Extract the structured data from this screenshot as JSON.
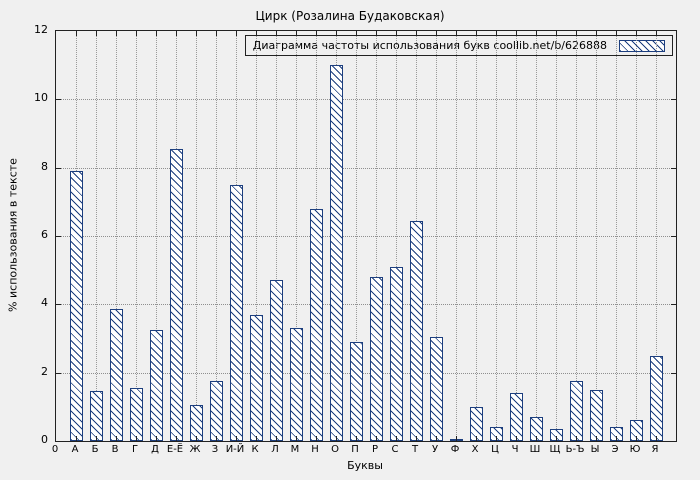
{
  "chart_data": {
    "type": "bar",
    "title": "Цирк (Розалина Будаковская)",
    "legend": "Диаграмма частоты использования букв coollib.net/b/626888",
    "xlabel": "Буквы",
    "ylabel": "% использования в тексте",
    "origin_label": "0",
    "ylim": [
      0,
      12
    ],
    "ytick_step": 2,
    "grid": true,
    "legend_position": "top-right",
    "bar_color": "#1c3e7e",
    "background_color": "#f0f0f0",
    "categories": [
      "А",
      "Б",
      "В",
      "Г",
      "Д",
      "Е-Ё",
      "Ж",
      "З",
      "И-Й",
      "К",
      "Л",
      "М",
      "Н",
      "О",
      "П",
      "Р",
      "С",
      "Т",
      "У",
      "Ф",
      "Х",
      "Ц",
      "Ч",
      "Ш",
      "Щ",
      "Ь-Ъ",
      "Ы",
      "Э",
      "Ю",
      "Я"
    ],
    "values": [
      7.9,
      1.45,
      3.85,
      1.55,
      3.25,
      8.55,
      1.05,
      1.75,
      7.5,
      3.7,
      4.7,
      3.3,
      6.8,
      11.0,
      2.9,
      4.8,
      5.1,
      6.45,
      3.05,
      0.05,
      1.0,
      0.4,
      1.4,
      0.7,
      0.35,
      1.75,
      1.5,
      0.4,
      0.6,
      2.5
    ]
  }
}
